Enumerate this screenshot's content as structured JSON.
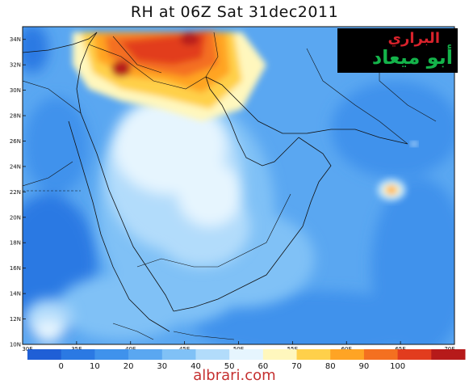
{
  "title": "RH at 06Z Sat 31dec2011",
  "map": {
    "lon_range": [
      30,
      70
    ],
    "lat_range": [
      10,
      35
    ],
    "lon_ticks": [
      "30E",
      "35E",
      "40E",
      "45E",
      "50E",
      "55E",
      "60E",
      "65E",
      "70E"
    ],
    "lat_ticks": [
      "10N",
      "12N",
      "14N",
      "16N",
      "18N",
      "20N",
      "22N",
      "24N",
      "26N",
      "28N",
      "30N",
      "32N",
      "34N"
    ]
  },
  "colorbar": {
    "labels": [
      "0",
      "10",
      "20",
      "30",
      "40",
      "50",
      "60",
      "70",
      "80",
      "90",
      "100"
    ],
    "colors": [
      "#1f5fd6",
      "#2b79e3",
      "#3f92ec",
      "#5aa7f1",
      "#80c1f6",
      "#b2dcfb",
      "#e6f5fe",
      "#fff7bd",
      "#ffd04a",
      "#ffa424",
      "#f47020",
      "#e23c1e",
      "#b61a1a"
    ]
  },
  "logo": {
    "line1": "البراري",
    "line2": "أبو ميعاد"
  },
  "watermark": "albrari.com"
}
